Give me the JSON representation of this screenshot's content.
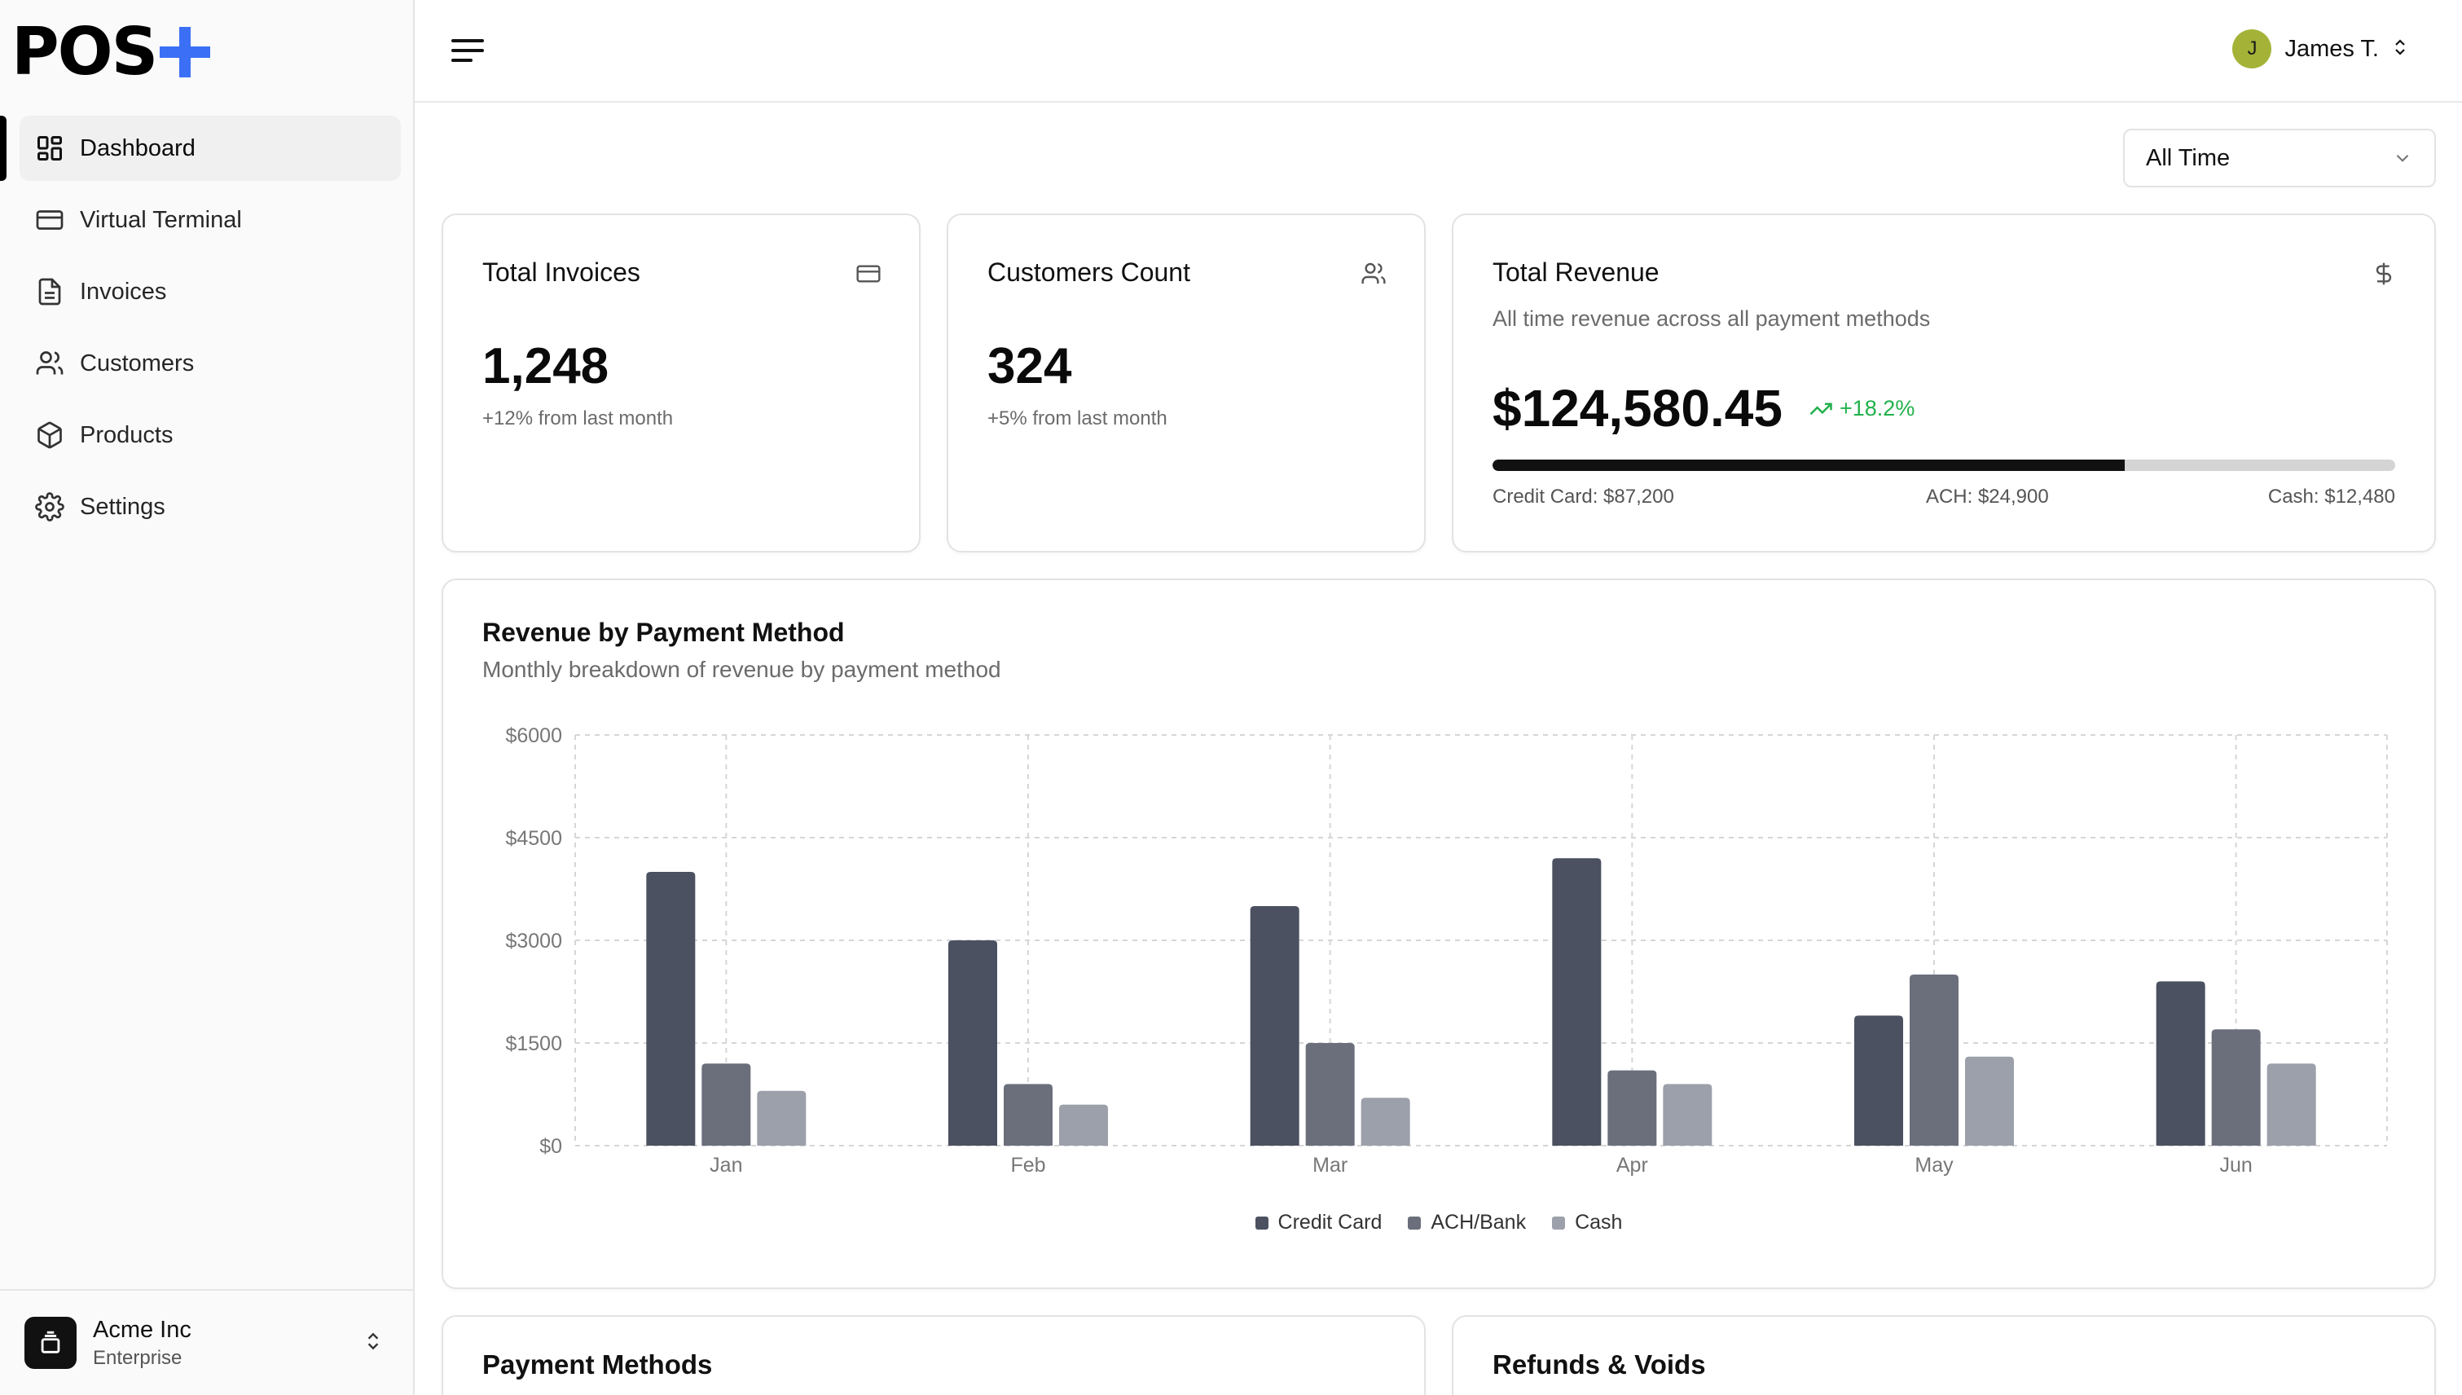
{
  "brand": {
    "logo_text": "POS",
    "accent": "#3b6ff5"
  },
  "sidebar": {
    "items": [
      {
        "label": "Dashboard",
        "icon": "layout-grid-icon",
        "active": true
      },
      {
        "label": "Virtual Terminal",
        "icon": "credit-card-icon",
        "active": false
      },
      {
        "label": "Invoices",
        "icon": "file-text-icon",
        "active": false
      },
      {
        "label": "Customers",
        "icon": "users-icon",
        "active": false
      },
      {
        "label": "Products",
        "icon": "package-icon",
        "active": false
      },
      {
        "label": "Settings",
        "icon": "gear-icon",
        "active": false
      }
    ],
    "org": {
      "name": "Acme Inc",
      "plan": "Enterprise"
    }
  },
  "topbar": {
    "user": {
      "initial": "J",
      "name": "James T."
    }
  },
  "filter": {
    "selected": "All Time"
  },
  "cards": {
    "invoices": {
      "title": "Total Invoices",
      "value": "1,248",
      "note": "+12% from last month"
    },
    "customers": {
      "title": "Customers Count",
      "value": "324",
      "note": "+5% from last month"
    },
    "revenue": {
      "title": "Total Revenue",
      "description": "All time revenue across all payment methods",
      "value": "$124,580.45",
      "trend": "+18.2%",
      "credit_card_share": 0.7,
      "breakdown": {
        "credit_card": "Credit Card: $87,200",
        "ach": "ACH: $24,900",
        "cash": "Cash: $12,480"
      }
    }
  },
  "chart_card": {
    "title": "Revenue by Payment Method",
    "subtitle": "Monthly breakdown of revenue by payment method"
  },
  "chart_data": {
    "type": "bar",
    "categories": [
      "Jan",
      "Feb",
      "Mar",
      "Apr",
      "May",
      "Jun"
    ],
    "series": [
      {
        "name": "Credit Card",
        "color": "#4b5160",
        "values": [
          4000,
          3000,
          3500,
          4200,
          1900,
          2400
        ]
      },
      {
        "name": "ACH/Bank",
        "color": "#6b6f7c",
        "values": [
          1200,
          900,
          1500,
          1100,
          2500,
          1700
        ]
      },
      {
        "name": "Cash",
        "color": "#9ca0aa",
        "values": [
          800,
          600,
          700,
          900,
          1300,
          1200
        ]
      }
    ],
    "yticks": [
      "$0",
      "$1500",
      "$3000",
      "$4500",
      "$6000"
    ],
    "ylim": [
      0,
      6000
    ],
    "grid": true,
    "legend": "bottom"
  },
  "bottom": {
    "payment_methods_title": "Payment Methods",
    "refunds_title": "Refunds & Voids"
  }
}
